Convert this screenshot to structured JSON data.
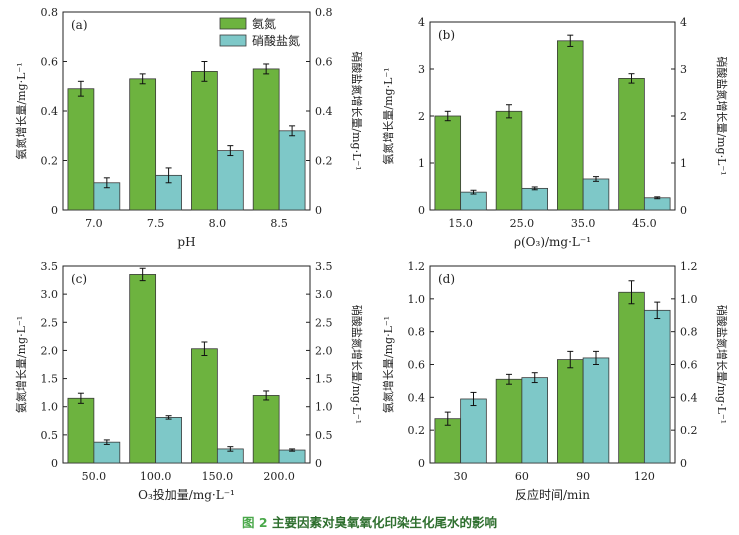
{
  "caption": {
    "number": "图 2",
    "text": "主要因素对臭氧氧化印染生化尾水的影响"
  },
  "colors": {
    "ammonia": "#6db33f",
    "nitrate": "#7ec8c8",
    "axis": "#222222"
  },
  "chart_data": [
    {
      "id": "a",
      "panel_label": "(a)",
      "type": "bar",
      "xlabel": "pH",
      "ylabel_left": "氨氮增长量/mg·L⁻¹",
      "ylabel_right": "硝酸盐氮增长量/mg·L⁻¹",
      "ylim": [
        0,
        0.8
      ],
      "yticks": [
        "0",
        "0.2",
        "0.4",
        "0.6",
        "0.8"
      ],
      "categories": [
        "7.0",
        "7.5",
        "8.0",
        "8.5"
      ],
      "legend": [
        "氨氮",
        "硝酸盐氮"
      ],
      "series": [
        {
          "name": "氨氮",
          "values": [
            0.49,
            0.53,
            0.56,
            0.57
          ],
          "errors": [
            0.03,
            0.02,
            0.04,
            0.02
          ]
        },
        {
          "name": "硝酸盐氮",
          "values": [
            0.11,
            0.14,
            0.24,
            0.32
          ],
          "errors": [
            0.02,
            0.03,
            0.02,
            0.02
          ]
        }
      ]
    },
    {
      "id": "b",
      "panel_label": "(b)",
      "type": "bar",
      "xlabel": "ρ(O₃)/mg·L⁻¹",
      "ylabel_left": "氨氮增长量/mg·L⁻¹",
      "ylabel_right": "硝酸盐氮增长量/mg·L⁻¹",
      "ylim": [
        0,
        4
      ],
      "yticks": [
        "0",
        "1",
        "2",
        "3",
        "4"
      ],
      "categories": [
        "15.0",
        "25.0",
        "35.0",
        "45.0"
      ],
      "series": [
        {
          "name": "氨氮",
          "values": [
            2.0,
            2.1,
            3.6,
            2.8
          ],
          "errors": [
            0.1,
            0.14,
            0.12,
            0.1
          ]
        },
        {
          "name": "硝酸盐氮",
          "values": [
            0.38,
            0.46,
            0.66,
            0.26
          ],
          "errors": [
            0.04,
            0.03,
            0.05,
            0.02
          ]
        }
      ]
    },
    {
      "id": "c",
      "panel_label": "(c)",
      "type": "bar",
      "xlabel": "O₃投加量/mg·L⁻¹",
      "ylabel_left": "氨氮增长量/mg·L⁻¹",
      "ylabel_right": "硝酸盐氮增长量/mg·L⁻¹",
      "ylim": [
        0,
        3.5
      ],
      "yticks": [
        "0",
        "0.5",
        "1.0",
        "1.5",
        "2.0",
        "2.5",
        "3.0",
        "3.5"
      ],
      "categories": [
        "50.0",
        "100.0",
        "150.0",
        "200.0"
      ],
      "series": [
        {
          "name": "氨氮",
          "values": [
            1.15,
            3.35,
            2.03,
            1.2
          ],
          "errors": [
            0.09,
            0.11,
            0.12,
            0.08
          ]
        },
        {
          "name": "硝酸盐氮",
          "values": [
            0.37,
            0.81,
            0.25,
            0.23
          ],
          "errors": [
            0.04,
            0.03,
            0.04,
            0.02
          ]
        }
      ]
    },
    {
      "id": "d",
      "panel_label": "(d)",
      "type": "bar",
      "xlabel": "反应时间/min",
      "ylabel_left": "氨氮增长量/mg·L⁻¹",
      "ylabel_right": "硝酸盐氮增长量/mg·L⁻¹",
      "ylim": [
        0,
        1.2
      ],
      "yticks": [
        "0",
        "0.2",
        "0.4",
        "0.6",
        "0.8",
        "1.0",
        "1.2"
      ],
      "categories": [
        "30",
        "60",
        "90",
        "120"
      ],
      "series": [
        {
          "name": "氨氮",
          "values": [
            0.27,
            0.51,
            0.63,
            1.04
          ],
          "errors": [
            0.04,
            0.03,
            0.05,
            0.07
          ]
        },
        {
          "name": "硝酸盐氮",
          "values": [
            0.39,
            0.52,
            0.64,
            0.93
          ],
          "errors": [
            0.04,
            0.03,
            0.04,
            0.05
          ]
        }
      ]
    }
  ]
}
